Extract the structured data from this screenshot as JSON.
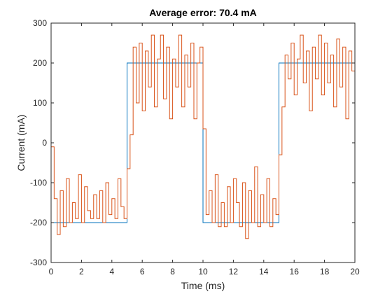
{
  "chart_data": {
    "type": "line",
    "title": "Average error:  70.4 mA",
    "xlabel": "Time (ms)",
    "ylabel": "Current (mA)",
    "xlim": [
      0,
      20
    ],
    "ylim": [
      -300,
      300
    ],
    "xticks": [
      0,
      2,
      4,
      6,
      8,
      10,
      12,
      14,
      16,
      18,
      20
    ],
    "yticks": [
      -300,
      -200,
      -100,
      0,
      100,
      200,
      300
    ],
    "xtick_labels": [
      "0",
      "2",
      "4",
      "6",
      "8",
      "10",
      "12",
      "14",
      "16",
      "18",
      "20"
    ],
    "ytick_labels": [
      "-300",
      "-200",
      "-100",
      "0",
      "100",
      "200",
      "300"
    ],
    "grid": false,
    "legend": "none",
    "series": [
      {
        "color": "#0072BD",
        "step": true,
        "points": [
          [
            0,
            -200
          ],
          [
            5,
            -200
          ],
          [
            5,
            200
          ],
          [
            10,
            200
          ],
          [
            10,
            -200
          ],
          [
            15,
            -200
          ],
          [
            15,
            200
          ],
          [
            20,
            200
          ]
        ]
      },
      {
        "color": "#D95319",
        "step": true,
        "points": [
          [
            0.0,
            -10
          ],
          [
            0.2,
            -140
          ],
          [
            0.4,
            -230
          ],
          [
            0.6,
            -120
          ],
          [
            0.8,
            -210
          ],
          [
            1.0,
            -90
          ],
          [
            1.2,
            -200
          ],
          [
            1.4,
            -150
          ],
          [
            1.6,
            -190
          ],
          [
            1.8,
            -80
          ],
          [
            2.0,
            -200
          ],
          [
            2.2,
            -110
          ],
          [
            2.4,
            -170
          ],
          [
            2.6,
            -190
          ],
          [
            2.8,
            -130
          ],
          [
            3.0,
            -190
          ],
          [
            3.2,
            -120
          ],
          [
            3.4,
            -200
          ],
          [
            3.6,
            -100
          ],
          [
            3.8,
            -180
          ],
          [
            4.0,
            -140
          ],
          [
            4.2,
            -190
          ],
          [
            4.4,
            -90
          ],
          [
            4.6,
            -160
          ],
          [
            4.8,
            -190
          ],
          [
            5.0,
            -65
          ],
          [
            5.2,
            20
          ],
          [
            5.4,
            240
          ],
          [
            5.6,
            100
          ],
          [
            5.8,
            250
          ],
          [
            6.0,
            80
          ],
          [
            6.2,
            230
          ],
          [
            6.4,
            140
          ],
          [
            6.6,
            270
          ],
          [
            6.8,
            90
          ],
          [
            7.0,
            210
          ],
          [
            7.2,
            270
          ],
          [
            7.4,
            110
          ],
          [
            7.6,
            240
          ],
          [
            7.8,
            60
          ],
          [
            8.0,
            210
          ],
          [
            8.2,
            140
          ],
          [
            8.4,
            270
          ],
          [
            8.6,
            90
          ],
          [
            8.8,
            220
          ],
          [
            9.0,
            140
          ],
          [
            9.2,
            250
          ],
          [
            9.4,
            60
          ],
          [
            9.6,
            200
          ],
          [
            9.8,
            240
          ],
          [
            10.0,
            35
          ],
          [
            10.2,
            -180
          ],
          [
            10.4,
            -120
          ],
          [
            10.6,
            -200
          ],
          [
            10.8,
            -80
          ],
          [
            11.0,
            -210
          ],
          [
            11.2,
            -150
          ],
          [
            11.4,
            -210
          ],
          [
            11.6,
            -110
          ],
          [
            11.8,
            -200
          ],
          [
            12.0,
            -90
          ],
          [
            12.2,
            -150
          ],
          [
            12.4,
            -210
          ],
          [
            12.6,
            -100
          ],
          [
            12.8,
            -240
          ],
          [
            13.0,
            -120
          ],
          [
            13.2,
            -200
          ],
          [
            13.4,
            -60
          ],
          [
            13.6,
            -210
          ],
          [
            13.8,
            -130
          ],
          [
            14.0,
            -200
          ],
          [
            14.2,
            -90
          ],
          [
            14.4,
            -210
          ],
          [
            14.6,
            -140
          ],
          [
            14.8,
            -180
          ],
          [
            15.0,
            -30
          ],
          [
            15.2,
            90
          ],
          [
            15.4,
            220
          ],
          [
            15.6,
            160
          ],
          [
            15.8,
            250
          ],
          [
            16.0,
            120
          ],
          [
            16.2,
            210
          ],
          [
            16.4,
            270
          ],
          [
            16.6,
            150
          ],
          [
            16.8,
            230
          ],
          [
            17.0,
            80
          ],
          [
            17.2,
            240
          ],
          [
            17.4,
            160
          ],
          [
            17.6,
            270
          ],
          [
            17.8,
            120
          ],
          [
            18.0,
            250
          ],
          [
            18.2,
            150
          ],
          [
            18.4,
            220
          ],
          [
            18.6,
            90
          ],
          [
            18.8,
            260
          ],
          [
            19.0,
            140
          ],
          [
            19.2,
            240
          ],
          [
            19.4,
            60
          ],
          [
            19.6,
            230
          ],
          [
            19.8,
            180
          ],
          [
            20.0,
            0
          ]
        ]
      }
    ]
  }
}
